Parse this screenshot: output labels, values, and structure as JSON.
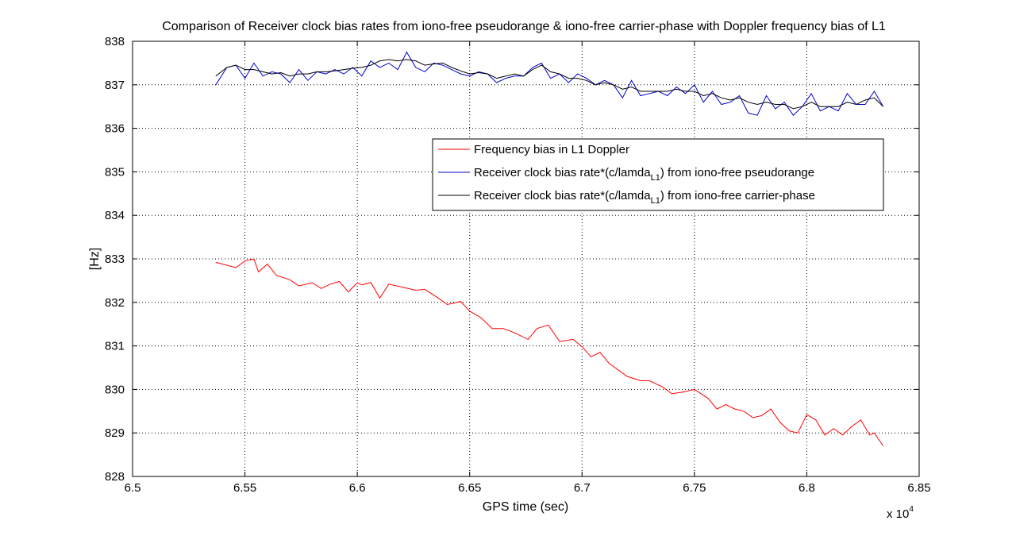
{
  "chart_data": {
    "type": "line",
    "title": "Comparison of Receiver clock bias rates from iono-free pseudorange & iono-free carrier-phase with Doppler frequency bias of L1",
    "xlabel": "GPS time (sec)",
    "ylabel": "[Hz]",
    "x_multiplier_label": "x 10",
    "x_multiplier_exp": "4",
    "xlim": [
      65000,
      68500
    ],
    "ylim": [
      828,
      838
    ],
    "x_ticks": [
      65000,
      65500,
      66000,
      66500,
      67000,
      67500,
      68000,
      68500
    ],
    "x_tick_labels": [
      "6.5",
      "6.55",
      "6.6",
      "6.65",
      "6.7",
      "6.75",
      "6.8",
      "6.85"
    ],
    "y_ticks": [
      828,
      829,
      830,
      831,
      832,
      833,
      834,
      835,
      836,
      837,
      838
    ],
    "y_tick_labels": [
      "828",
      "829",
      "830",
      "831",
      "832",
      "833",
      "834",
      "835",
      "836",
      "837",
      "838"
    ],
    "grid": true,
    "legend_position": "upper-right",
    "series": [
      {
        "name": "Frequency bias in L1 Doppler",
        "legend_main": "Frequency bias in L1 Doppler",
        "legend_sub": "",
        "legend_tail": "",
        "color": "#ff0000",
        "x": [
          65370,
          65460,
          65500,
          65540,
          65560,
          65600,
          65640,
          65700,
          65740,
          65800,
          65840,
          65880,
          65920,
          65960,
          66000,
          66020,
          66060,
          66100,
          66140,
          66200,
          66260,
          66300,
          66360,
          66400,
          66460,
          66500,
          66550,
          66600,
          66650,
          66700,
          66760,
          66800,
          66850,
          66900,
          66960,
          67000,
          67040,
          67080,
          67120,
          67160,
          67200,
          67260,
          67300,
          67360,
          67400,
          67460,
          67500,
          67560,
          67600,
          67640,
          67680,
          67720,
          67760,
          67800,
          67840,
          67880,
          67920,
          67960,
          68000,
          68040,
          68080,
          68120,
          68160,
          68200,
          68240,
          68280,
          68300,
          68340
        ],
        "y": [
          832.92,
          832.8,
          832.95,
          833.0,
          832.7,
          832.88,
          832.62,
          832.52,
          832.38,
          832.45,
          832.32,
          832.42,
          832.48,
          832.24,
          832.45,
          832.4,
          832.46,
          832.1,
          832.42,
          832.35,
          832.28,
          832.3,
          832.1,
          831.95,
          832.02,
          831.8,
          831.65,
          831.4,
          831.4,
          831.3,
          831.15,
          831.4,
          831.48,
          831.1,
          831.15,
          830.98,
          830.75,
          830.85,
          830.6,
          830.45,
          830.3,
          830.2,
          830.2,
          830.05,
          829.9,
          829.95,
          830.0,
          829.8,
          829.55,
          829.65,
          829.55,
          829.5,
          829.35,
          829.4,
          829.55,
          829.25,
          829.05,
          829.0,
          829.42,
          829.3,
          828.95,
          829.1,
          828.95,
          829.15,
          829.3,
          828.95,
          829.0,
          828.7
        ]
      },
      {
        "name": "Receiver clock bias rate*(c/lamda_L1) from iono-free pseudorange",
        "legend_main": "Receiver clock bias rate*(c/lamda",
        "legend_sub": "L1",
        "legend_tail": ") from iono-free pseudorange",
        "color": "#0000cc",
        "x": [
          65370,
          65420,
          65460,
          65500,
          65540,
          65580,
          65620,
          65660,
          65700,
          65740,
          65780,
          65820,
          65860,
          65900,
          65940,
          65980,
          66020,
          66060,
          66100,
          66140,
          66180,
          66220,
          66260,
          66300,
          66340,
          66380,
          66420,
          66460,
          66500,
          66540,
          66580,
          66620,
          66660,
          66700,
          66740,
          66780,
          66820,
          66860,
          66900,
          66940,
          66980,
          67020,
          67060,
          67100,
          67140,
          67180,
          67220,
          67260,
          67300,
          67340,
          67380,
          67420,
          67460,
          67500,
          67540,
          67580,
          67620,
          67660,
          67700,
          67740,
          67780,
          67820,
          67860,
          67900,
          67940,
          67980,
          68020,
          68060,
          68100,
          68140,
          68180,
          68220,
          68260,
          68300,
          68340
        ],
        "y": [
          837.0,
          837.4,
          837.45,
          837.15,
          837.5,
          837.2,
          837.3,
          837.25,
          837.05,
          837.35,
          837.1,
          837.3,
          837.25,
          837.35,
          837.25,
          837.4,
          837.2,
          837.55,
          837.4,
          837.5,
          837.35,
          837.75,
          837.4,
          837.3,
          837.5,
          837.45,
          837.35,
          837.25,
          837.2,
          837.3,
          837.25,
          837.05,
          837.15,
          837.2,
          837.2,
          837.4,
          837.5,
          837.15,
          837.25,
          837.05,
          837.25,
          837.15,
          837.0,
          837.1,
          837.0,
          836.7,
          837.1,
          836.75,
          836.8,
          836.85,
          836.75,
          836.95,
          836.8,
          837.0,
          836.6,
          836.85,
          836.55,
          836.6,
          836.75,
          836.35,
          836.3,
          836.75,
          836.45,
          836.6,
          836.3,
          836.5,
          836.8,
          836.4,
          836.5,
          836.4,
          836.8,
          836.55,
          836.55,
          836.85,
          836.5
        ]
      },
      {
        "name": "Receiver clock bias rate*(c/lamda_L1) from iono-free carrier-phase",
        "legend_main": "Receiver clock bias rate*(c/lamda",
        "legend_sub": "L1",
        "legend_tail": ") from iono-free carrier-phase",
        "color": "#000000",
        "x": [
          65370,
          65420,
          65460,
          65500,
          65540,
          65580,
          65620,
          65660,
          65700,
          65740,
          65780,
          65820,
          65860,
          65900,
          65940,
          65980,
          66020,
          66060,
          66100,
          66140,
          66180,
          66220,
          66260,
          66300,
          66340,
          66380,
          66420,
          66460,
          66500,
          66540,
          66580,
          66620,
          66660,
          66700,
          66740,
          66780,
          66820,
          66860,
          66900,
          66940,
          66980,
          67020,
          67060,
          67100,
          67140,
          67180,
          67220,
          67260,
          67300,
          67340,
          67380,
          67420,
          67460,
          67500,
          67540,
          67580,
          67620,
          67660,
          67700,
          67740,
          67780,
          67820,
          67860,
          67900,
          67940,
          67980,
          68020,
          68060,
          68100,
          68140,
          68180,
          68220,
          68260,
          68300,
          68340
        ],
        "y": [
          837.2,
          837.4,
          837.45,
          837.35,
          837.35,
          837.3,
          837.25,
          837.28,
          837.2,
          837.25,
          837.25,
          837.3,
          837.3,
          837.32,
          837.35,
          837.38,
          837.4,
          837.45,
          837.55,
          837.58,
          837.55,
          837.58,
          837.55,
          837.45,
          837.48,
          837.5,
          837.4,
          837.32,
          837.25,
          837.28,
          837.25,
          837.15,
          837.2,
          837.25,
          837.2,
          837.35,
          837.45,
          837.3,
          837.25,
          837.15,
          837.15,
          837.1,
          837.0,
          837.05,
          837.0,
          836.9,
          836.95,
          836.85,
          836.85,
          836.85,
          836.85,
          836.9,
          836.85,
          836.85,
          836.75,
          836.8,
          836.7,
          836.65,
          836.7,
          836.6,
          836.55,
          836.6,
          836.55,
          836.55,
          836.45,
          836.5,
          836.6,
          836.5,
          836.5,
          836.5,
          836.6,
          836.55,
          836.65,
          836.7,
          836.5
        ]
      }
    ]
  }
}
